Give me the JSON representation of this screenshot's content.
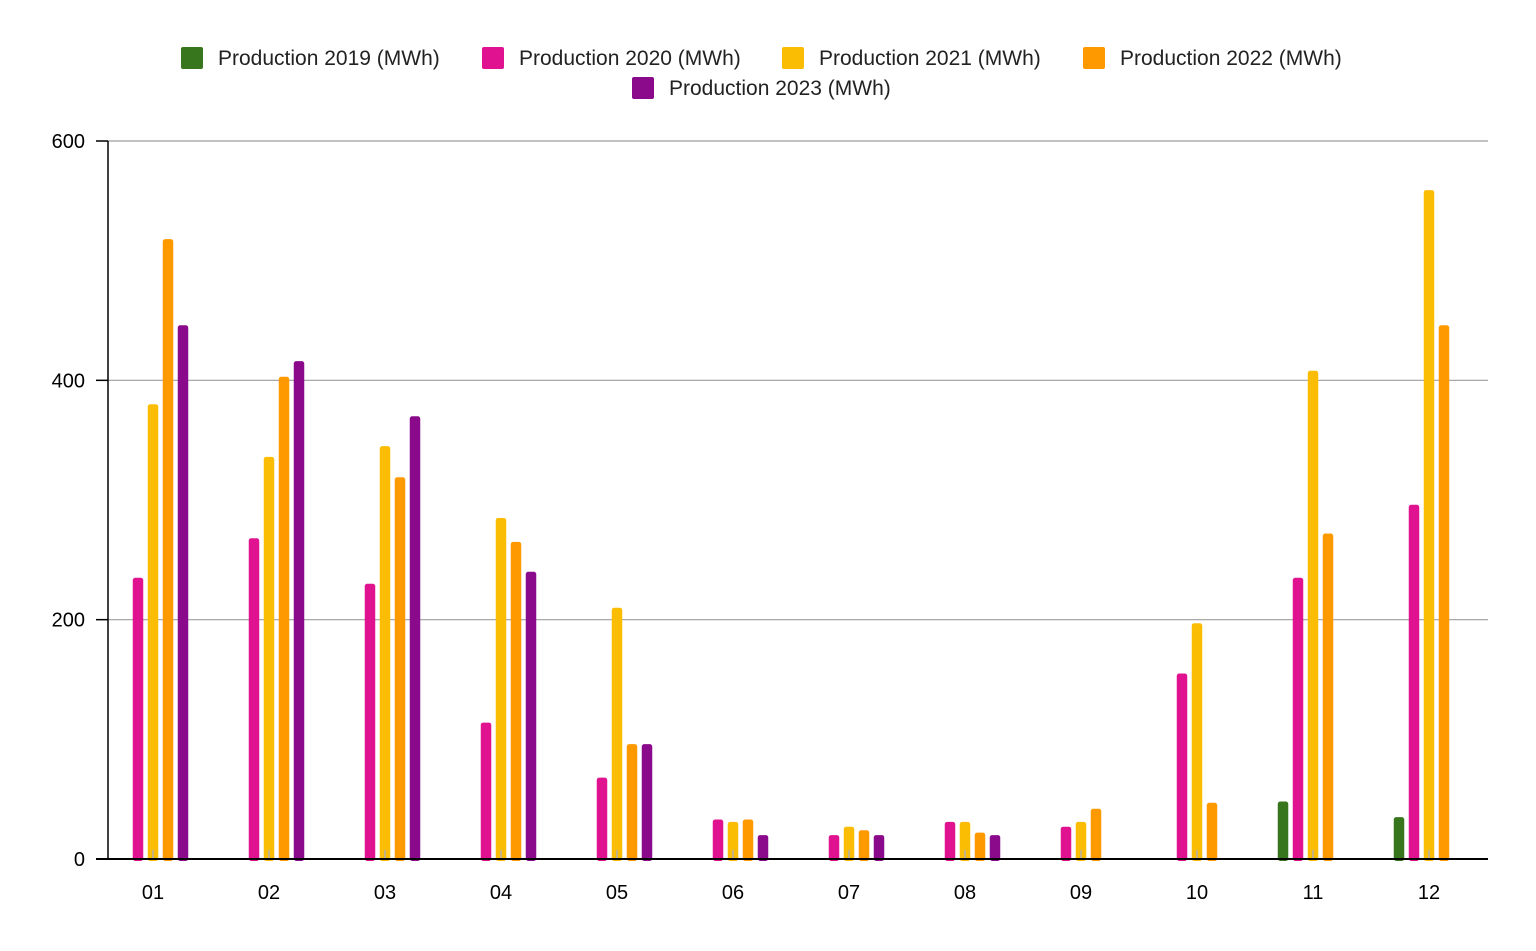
{
  "chart_data": {
    "type": "bar",
    "categories": [
      "01",
      "02",
      "03",
      "04",
      "05",
      "06",
      "07",
      "08",
      "09",
      "10",
      "11",
      "12"
    ],
    "ylim": [
      0,
      600
    ],
    "yticks": [
      0,
      200,
      400,
      600
    ],
    "grid": true,
    "legend_position": "top-center",
    "series": [
      {
        "name": "Production 2019 (MWh)",
        "color": "#38761d",
        "values": [
          null,
          null,
          null,
          null,
          null,
          null,
          null,
          null,
          null,
          null,
          48,
          35
        ]
      },
      {
        "name": "Production 2020 (MWh)",
        "color": "#e0128f",
        "values": [
          235,
          268,
          230,
          114,
          68,
          33,
          20,
          31,
          27,
          155,
          235,
          296
        ]
      },
      {
        "name": "Production 2021 (MWh)",
        "color": "#fbbc04",
        "values": [
          380,
          336,
          345,
          285,
          210,
          31,
          27,
          31,
          31,
          197,
          408,
          559
        ]
      },
      {
        "name": "Production 2022 (MWh)",
        "color": "#ff9900",
        "values": [
          518,
          403,
          319,
          265,
          96,
          33,
          24,
          22,
          42,
          47,
          272,
          446
        ]
      },
      {
        "name": "Production 2023 (MWh)",
        "color": "#8b0a8b",
        "values": [
          446,
          416,
          370,
          240,
          96,
          20,
          20,
          20,
          null,
          null,
          null,
          null
        ]
      }
    ]
  }
}
